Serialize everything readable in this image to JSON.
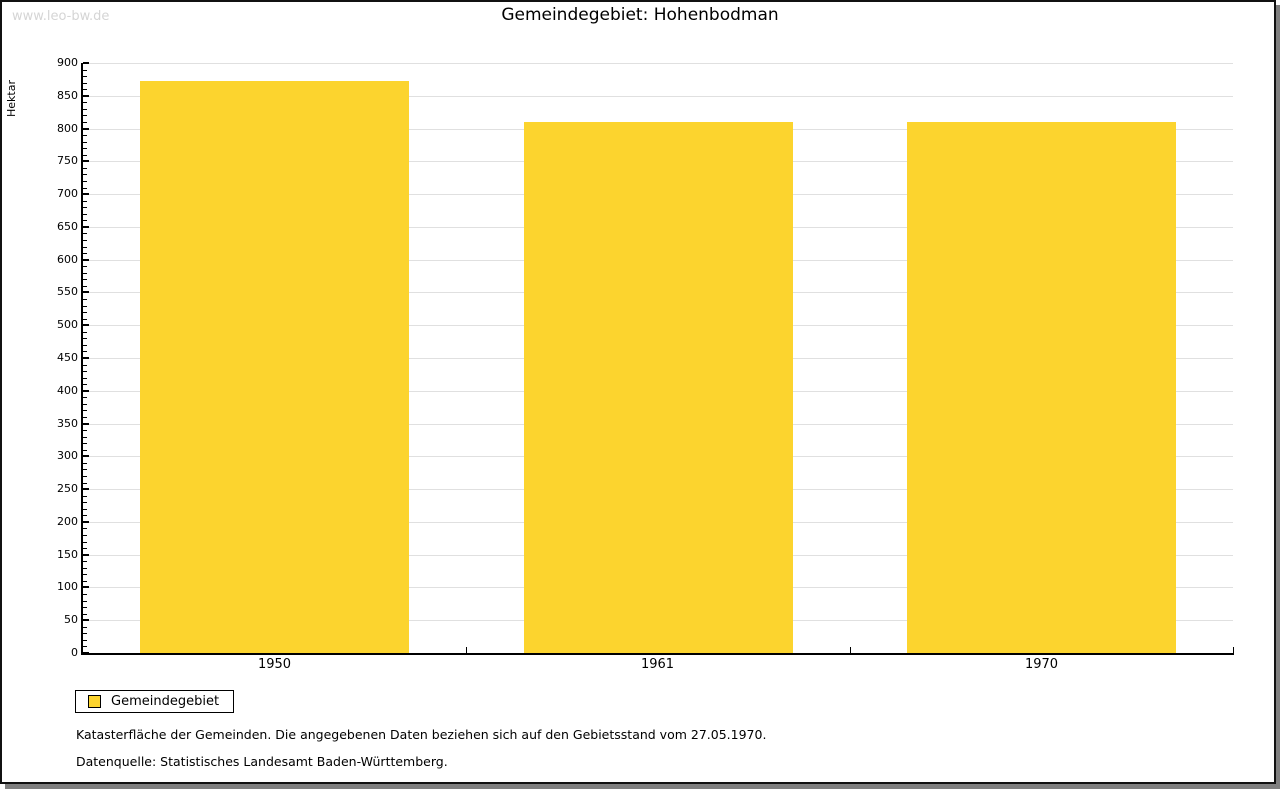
{
  "watermark": "www.leo-bw.de",
  "title": "Gemeindegebiet: Hohenbodman",
  "chart_data": {
    "type": "bar",
    "title": "Gemeindegebiet: Hohenbodman",
    "categories": [
      "1950",
      "1961",
      "1970"
    ],
    "series": [
      {
        "name": "Gemeindegebiet",
        "values": [
          872,
          810,
          810
        ]
      }
    ],
    "xlabel": "",
    "ylabel": "Hektar",
    "ylim": [
      0,
      900
    ],
    "y_major_step": 50,
    "y_minor_step": 10,
    "grid": true,
    "legend_position": "bottom-left",
    "bar_color": "#fcd42e"
  },
  "legend": {
    "items": [
      {
        "label": "Gemeindegebiet",
        "color": "#fcd42e"
      }
    ]
  },
  "footer": {
    "line1": "Katasterfläche der Gemeinden. Die angegebenen Daten beziehen sich auf den Gebietsstand vom 27.05.1970.",
    "line2": "Datenquelle: Statistisches Landesamt Baden-Württemberg."
  }
}
